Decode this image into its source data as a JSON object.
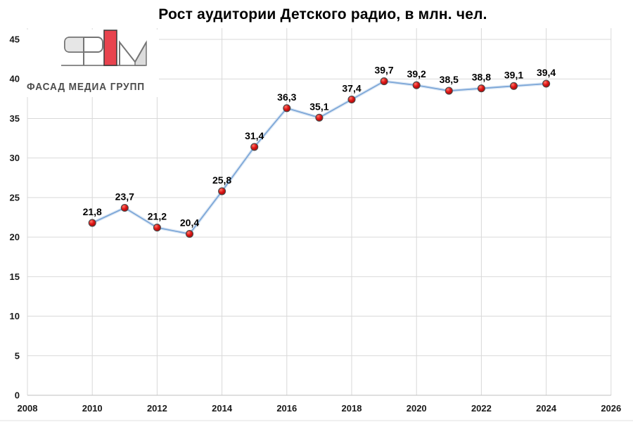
{
  "logo": {
    "text": "ФАСАД МЕДИА ГРУПП",
    "accent_color": "#e8434e",
    "outline_color": "#757575",
    "fill_color": "#e6e6e6"
  },
  "chart_data": {
    "type": "line",
    "title": "Рост аудитории Детского радио, в млн. чел.",
    "x": [
      2010,
      2011,
      2012,
      2013,
      2014,
      2015,
      2016,
      2017,
      2018,
      2019,
      2020,
      2021,
      2022,
      2023,
      2024
    ],
    "series": [
      {
        "values": [
          21.8,
          23.7,
          21.2,
          20.4,
          25.8,
          31.4,
          36.3,
          35.1,
          37.4,
          39.7,
          39.2,
          38.5,
          38.8,
          39.1,
          39.4
        ],
        "labels": [
          "21,8",
          "23,7",
          "21,2",
          "20,4",
          "25,8",
          "31,4",
          "36,3",
          "35,1",
          "37,4",
          "39,7",
          "39,2",
          "38,5",
          "38,8",
          "39,1",
          "39,4"
        ]
      }
    ],
    "x_ticks": [
      2008,
      2010,
      2012,
      2014,
      2016,
      2018,
      2020,
      2022,
      2024,
      2026
    ],
    "y_ticks": [
      0,
      5,
      10,
      15,
      20,
      25,
      30,
      35,
      40,
      45
    ],
    "xlim": [
      2008,
      2026
    ],
    "ylim": [
      0,
      45
    ],
    "grid": true,
    "legend": false,
    "colors": {
      "grid": "#d9d9d9",
      "axis": "#bfbfbf",
      "line": "#7da7d8",
      "line_glow": "#c3d7ec",
      "marker": "#d01220",
      "marker_stroke": "#4a4a4a",
      "tick_label": "#1a1a1a",
      "data_label": "#000000"
    }
  }
}
